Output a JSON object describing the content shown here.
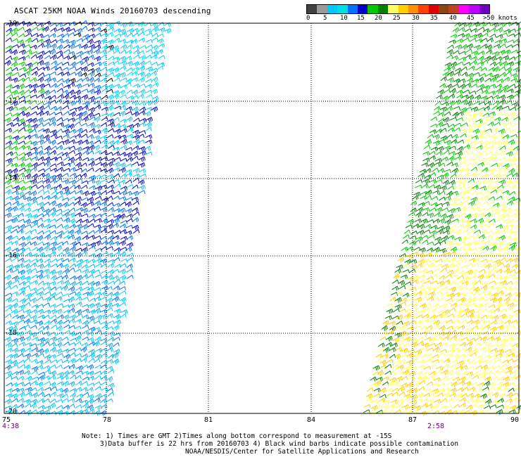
{
  "title": "ASCAT 25KM NOAA Winds 20160703 descending",
  "legend": {
    "colors": [
      "#404040",
      "#9a9a9a",
      "#00c8ff",
      "#00e0e0",
      "#0070ff",
      "#0000c8",
      "#00c800",
      "#008000",
      "#ffff60",
      "#ffd000",
      "#ff9000",
      "#ff4000",
      "#e00000",
      "#8b4513",
      "#c04020",
      "#ff00ff",
      "#c000ff",
      "#7000c0"
    ],
    "labels": [
      "0",
      "5",
      "10",
      "15",
      "20",
      "25",
      "30",
      "35",
      "40",
      "45",
      ">50 knots"
    ],
    "unit": "knots"
  },
  "axes": {
    "lat_labels": [
      "-10",
      "-12",
      "-14",
      "-16",
      "-18",
      "-20"
    ],
    "lon_labels": [
      "75",
      "78",
      "81",
      "84",
      "87",
      "90"
    ]
  },
  "swath_times": {
    "left": "4:38",
    "right": "2:58"
  },
  "notes": {
    "line1": "Note: 1) Times are GMT 2)Times along bottom correspond to measurement at -15S",
    "line2": "3)Data buffer is 22 hrs from 20160703 4) Black wind barbs indicate possible contamination",
    "line3": "NOAA/NESDIS/Center for Satellite Applications and Research"
  }
}
